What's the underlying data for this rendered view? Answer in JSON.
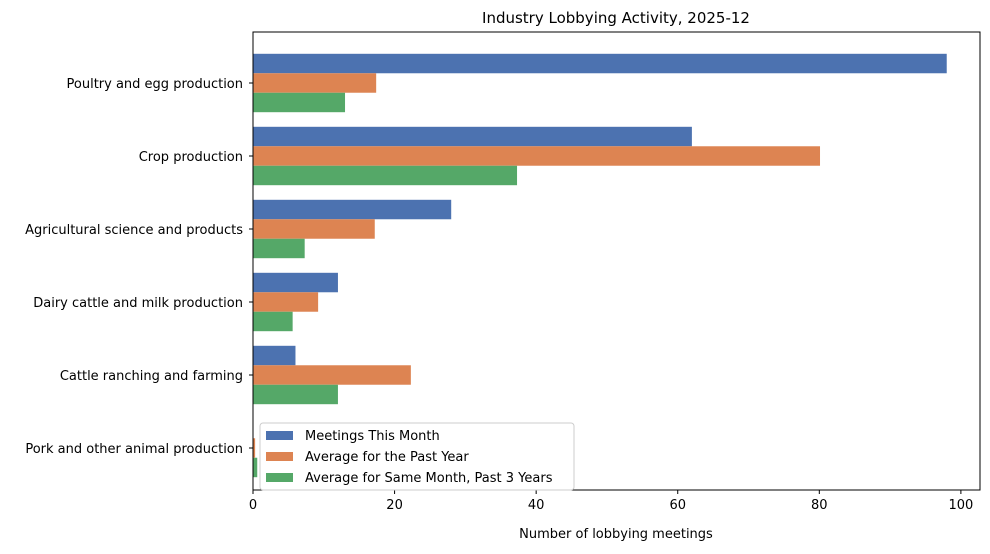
{
  "chart_data": {
    "type": "bar",
    "orientation": "horizontal",
    "title": "Industry Lobbying Activity, 2025-12",
    "xlabel": "Number of lobbying meetings",
    "ylabel": "",
    "categories": [
      "Poultry and egg production",
      "Crop production",
      "Agricultural science and products",
      "Dairy cattle and milk production",
      "Cattle ranching and farming",
      "Pork and other animal production"
    ],
    "series": [
      {
        "name": "Meetings This Month",
        "color": "#4c72b0",
        "values": [
          98,
          62,
          28,
          12,
          6,
          0
        ]
      },
      {
        "name": "Average for the Past Year",
        "color": "#dd8452",
        "values": [
          17.4,
          80.1,
          17.2,
          9.2,
          22.3,
          0.3
        ]
      },
      {
        "name": "Average for Same Month, Past 3 Years",
        "color": "#55a868",
        "values": [
          13.0,
          37.3,
          7.3,
          5.6,
          12.0,
          0.6
        ]
      }
    ],
    "xlim": [
      0,
      102.7
    ],
    "xticks": [
      "0",
      "20",
      "40",
      "60",
      "80",
      "100"
    ],
    "grid": false,
    "legend": "lower-left"
  }
}
